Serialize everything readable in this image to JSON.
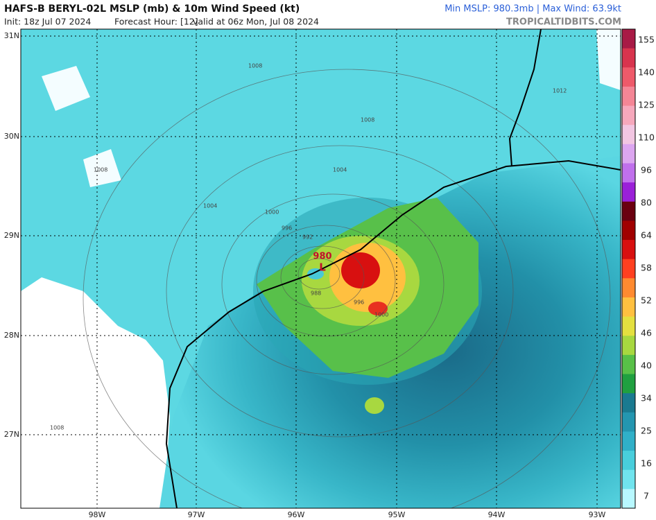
{
  "header": {
    "title": "HAFS-B BERYL-02L MSLP (mb) & 10m Wind Speed (kt)",
    "init": "Init: 18z Jul 07 2024",
    "forecast": "Forecast Hour: [12]",
    "valid": "valid at 06z Mon, Jul 08 2024",
    "stats": "Min MSLP: 980.3mb | Max Wind: 63.9kt",
    "site": "TROPICALTIDBITS.COM"
  },
  "map": {
    "lat_labels": [
      "31N",
      "30N",
      "29N",
      "28N",
      "27N"
    ],
    "lon_labels": [
      "98W",
      "97W",
      "96W",
      "95W",
      "94W",
      "93W"
    ],
    "contour_labels": [
      "1008",
      "1008",
      "1004",
      "1004",
      "1008",
      "1012",
      "1000",
      "996",
      "992",
      "988",
      "996",
      "1000",
      "1008"
    ],
    "low_label": "L",
    "low_pressure": "980"
  },
  "colorbar": {
    "ticks": [
      155,
      140,
      125,
      110,
      96,
      80,
      64,
      58,
      52,
      46,
      40,
      34,
      25,
      16,
      7
    ],
    "colors": [
      "#a81a46",
      "#d8344e",
      "#ee5a6a",
      "#f48696",
      "#f6a8bc",
      "#f2c6e2",
      "#dca6f0",
      "#c070ec",
      "#9a20d8",
      "#6a0010",
      "#a00000",
      "#d81010",
      "#ff4020",
      "#ff8a30",
      "#ffc040",
      "#e4e040",
      "#a8d840",
      "#58c048",
      "#20a040",
      "#1a7a90",
      "#2496b0",
      "#30b0c8",
      "#48cedc",
      "#70e4ee",
      "#b8f8ff"
    ]
  }
}
